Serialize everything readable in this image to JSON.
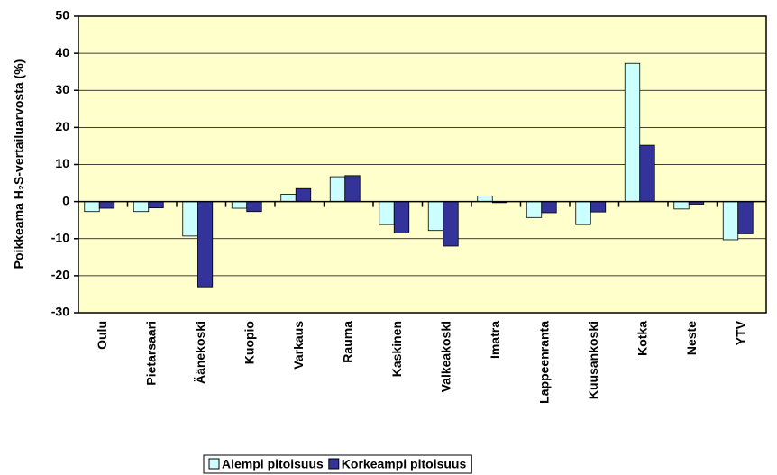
{
  "chart_data": {
    "type": "bar",
    "ylabel": "Poikkeama H₂S-vertailuarvosta (%)",
    "categories": [
      "Oulu",
      "Pietarsaari",
      "Äänekoski",
      "Kuopio",
      "Varkaus",
      "Rauma",
      "Kaskinen",
      "Valkeakoski",
      "Imatra",
      "Lappeenranta",
      "Kuusankoski",
      "Kotka",
      "Neste",
      "YTV"
    ],
    "series": [
      {
        "name": "Alempi pitoisuus",
        "color": "#ccffff",
        "values": [
          -2.7,
          -2.7,
          -9.3,
          -1.8,
          2,
          6.7,
          -6.2,
          -7.8,
          1.5,
          -4.3,
          -6.2,
          37.3,
          -2,
          -10.3
        ]
      },
      {
        "name": "Korkeampi pitoisuus",
        "color": "#333399",
        "values": [
          -1.8,
          -1.7,
          -23,
          -2.7,
          3.5,
          7,
          -8.5,
          -12,
          -0.3,
          -3,
          -2.8,
          15.2,
          -0.7,
          -8.7
        ]
      }
    ],
    "ylim": [
      -30,
      50
    ],
    "yticks": [
      -30,
      -20,
      -10,
      0,
      10,
      20,
      30,
      40,
      50
    ],
    "grid": true,
    "legend": "bottom"
  }
}
